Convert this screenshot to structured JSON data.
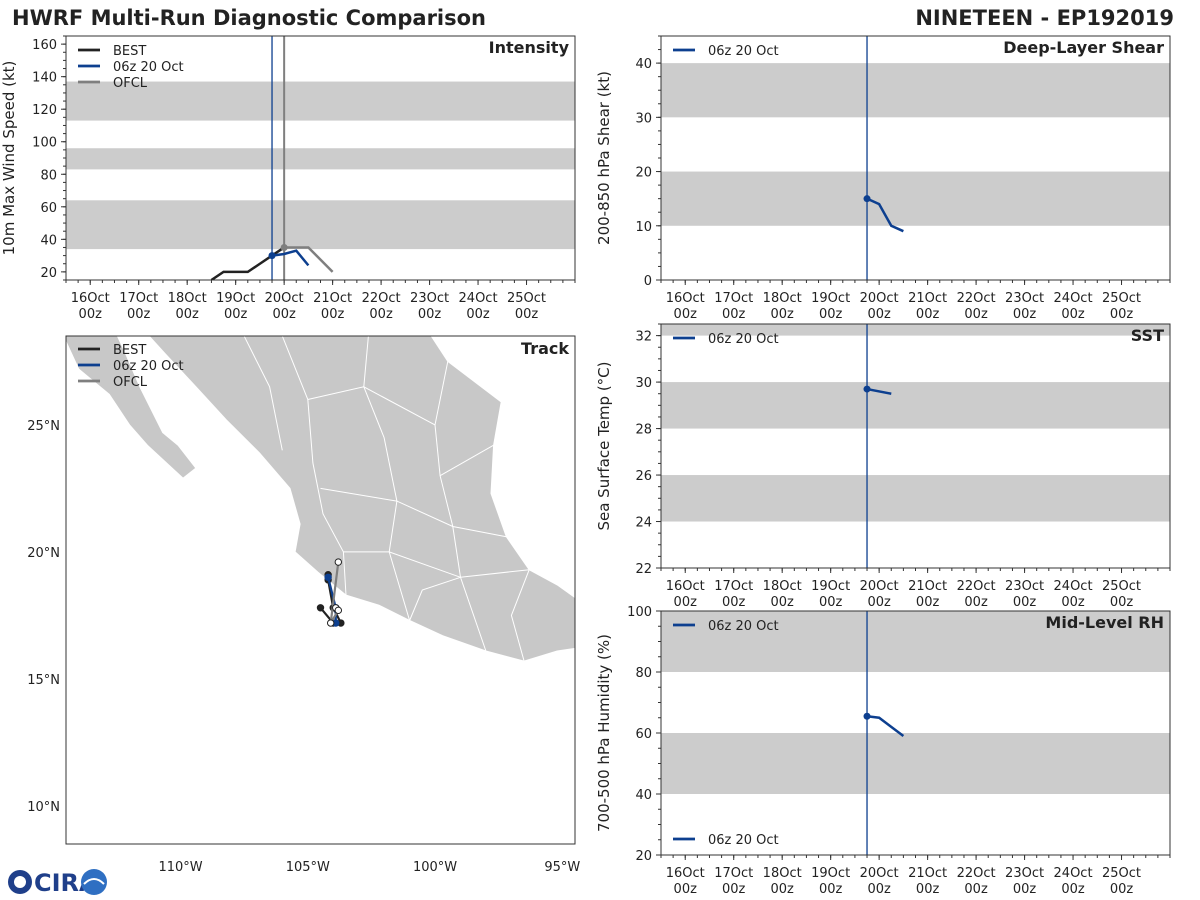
{
  "header": {
    "title_left": "HWRF Multi-Run Diagnostic Comparison",
    "title_right": "NINETEEN - EP192019"
  },
  "colors": {
    "best": "#222222",
    "run": "#0d3f8f",
    "ofcl": "#7f7f7f",
    "band": "#cccccc",
    "land": "#c8c8c8"
  },
  "logo": {
    "text": "CIRA"
  },
  "chart_data": [
    {
      "id": "intensity",
      "type": "line",
      "title": "Intensity",
      "ylabel": "10m Max Wind Speed (kt)",
      "ylim": [
        15,
        165
      ],
      "xlim": [
        0,
        10.5
      ],
      "yticks": [
        20,
        40,
        60,
        80,
        100,
        120,
        140,
        160
      ],
      "xtick_labels": [
        "16Oct\n00z",
        "17Oct\n00z",
        "18Oct\n00z",
        "19Oct\n00z",
        "20Oct\n00z",
        "21Oct\n00z",
        "22Oct\n00z",
        "23Oct\n00z",
        "24Oct\n00z",
        "25Oct\n00z"
      ],
      "bands": [
        [
          34,
          64
        ],
        [
          83,
          96
        ],
        [
          113,
          137
        ]
      ],
      "vlines": [
        4.25,
        4.5
      ],
      "legend": [
        "BEST",
        "06z 20 Oct",
        "OFCL"
      ],
      "series": [
        {
          "name": "BEST",
          "color": "#222222",
          "x": [
            3.0,
            3.25,
            3.75,
            4.0,
            4.25,
            4.5
          ],
          "y": [
            15,
            20,
            20,
            25,
            30,
            35
          ]
        },
        {
          "name": "06z 20 Oct",
          "color": "#0d3f8f",
          "x": [
            4.25,
            4.5,
            4.75,
            5.0
          ],
          "y": [
            30,
            31,
            33,
            24
          ],
          "marker": "start"
        },
        {
          "name": "OFCL",
          "color": "#7f7f7f",
          "x": [
            4.5,
            5.0,
            5.5
          ],
          "y": [
            35,
            35,
            20
          ],
          "marker": "start"
        }
      ]
    },
    {
      "id": "shear",
      "type": "line",
      "title": "Deep-Layer Shear",
      "ylabel": "200-850 hPa Shear (kt)",
      "ylim": [
        0,
        45
      ],
      "xlim": [
        0,
        10.5
      ],
      "yticks": [
        0,
        10,
        20,
        30,
        40
      ],
      "xtick_labels": [
        "16Oct\n00z",
        "17Oct\n00z",
        "18Oct\n00z",
        "19Oct\n00z",
        "20Oct\n00z",
        "21Oct\n00z",
        "22Oct\n00z",
        "23Oct\n00z",
        "24Oct\n00z",
        "25Oct\n00z"
      ],
      "bands": [
        [
          10,
          20
        ],
        [
          30,
          40
        ]
      ],
      "vlines": [
        4.25
      ],
      "legend": [
        "06z 20 Oct"
      ],
      "series": [
        {
          "name": "06z 20 Oct",
          "color": "#0d3f8f",
          "x": [
            4.25,
            4.5,
            4.75,
            5.0
          ],
          "y": [
            15,
            14,
            10,
            9
          ],
          "marker": "start"
        }
      ]
    },
    {
      "id": "sst",
      "type": "line",
      "title": "SST",
      "ylabel": "Sea Surface Temp (°C)",
      "ylim": [
        22,
        32.5
      ],
      "xlim": [
        0,
        10.5
      ],
      "yticks": [
        22,
        24,
        26,
        28,
        30,
        32
      ],
      "xtick_labels": [
        "16Oct\n00z",
        "17Oct\n00z",
        "18Oct\n00z",
        "19Oct\n00z",
        "20Oct\n00z",
        "21Oct\n00z",
        "22Oct\n00z",
        "23Oct\n00z",
        "24Oct\n00z",
        "25Oct\n00z"
      ],
      "bands": [
        [
          24,
          26
        ],
        [
          28,
          30
        ],
        [
          32,
          34
        ]
      ],
      "vlines": [
        4.25
      ],
      "legend": [
        "06z 20 Oct"
      ],
      "series": [
        {
          "name": "06z 20 Oct",
          "color": "#0d3f8f",
          "x": [
            4.25,
            4.75
          ],
          "y": [
            29.7,
            29.5
          ],
          "marker": "start"
        }
      ]
    },
    {
      "id": "rh",
      "type": "line",
      "title": "Mid-Level RH",
      "ylabel": "700-500 hPa Humidity (%)",
      "ylim": [
        20,
        100
      ],
      "xlim": [
        0,
        10.5
      ],
      "yticks": [
        20,
        40,
        60,
        80,
        100
      ],
      "xtick_labels": [
        "16Oct\n00z",
        "17Oct\n00z",
        "18Oct\n00z",
        "19Oct\n00z",
        "20Oct\n00z",
        "21Oct\n00z",
        "22Oct\n00z",
        "23Oct\n00z",
        "24Oct\n00z",
        "25Oct\n00z"
      ],
      "bands": [
        [
          40,
          60
        ],
        [
          80,
          100
        ]
      ],
      "vlines": [
        4.25
      ],
      "legend": [
        "06z 20 Oct",
        "06z 20 Oct"
      ],
      "series": [
        {
          "name": "06z 20 Oct",
          "color": "#0d3f8f",
          "x": [
            4.25,
            4.5,
            5.0
          ],
          "y": [
            65.5,
            65,
            59
          ],
          "marker": "start"
        }
      ]
    },
    {
      "id": "track",
      "type": "map",
      "title": "Track",
      "lon_range": [
        -114.5,
        -94.5
      ],
      "lat_range": [
        8.5,
        28.5
      ],
      "xtick_labels": [
        "110°W",
        "105°W",
        "100°W",
        "95°W"
      ],
      "xticks": [
        -110,
        -105,
        -100,
        -95
      ],
      "ytick_labels": [
        "10°N",
        "15°N",
        "20°N",
        "25°N"
      ],
      "yticks": [
        10,
        15,
        20,
        25
      ],
      "legend": [
        "BEST",
        "06z 20 Oct",
        "OFCL"
      ],
      "tracks": [
        {
          "name": "BEST",
          "color": "#222222",
          "lon": [
            -104.5,
            -104.0,
            -103.7,
            -104.0,
            -104.2,
            -104.2
          ],
          "lat": [
            17.8,
            17.2,
            17.2,
            17.8,
            18.9,
            19.1
          ]
        },
        {
          "name": "06z 20 Oct",
          "color": "#0d3f8f",
          "lon": [
            -104.2,
            -103.9,
            -103.9
          ],
          "lat": [
            19.0,
            17.8,
            17.2
          ]
        },
        {
          "name": "OFCL",
          "color": "#7f7f7f",
          "lon": [
            -103.9,
            -103.8,
            -104.1,
            -103.8
          ],
          "lat": [
            17.8,
            17.7,
            17.2,
            19.6
          ]
        }
      ]
    }
  ]
}
